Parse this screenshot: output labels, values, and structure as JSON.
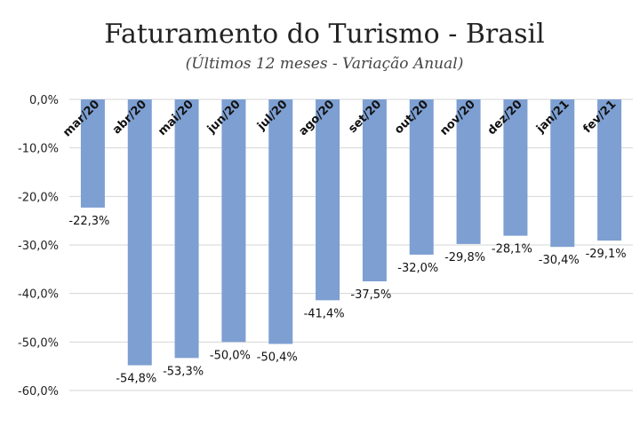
{
  "chart_data": {
    "type": "bar",
    "title": "Faturamento do Turismo - Brasil",
    "subtitle": "(Últimos 12 meses - Variação Anual)",
    "categories": [
      "mar/20",
      "abr/20",
      "mai/20",
      "jun/20",
      "jul/20",
      "ago/20",
      "set/20",
      "out/20",
      "nov/20",
      "dez/20",
      "jan/21",
      "fev/21"
    ],
    "values": [
      -22.3,
      -54.8,
      -53.3,
      -50.0,
      -50.4,
      -41.4,
      -37.5,
      -32.0,
      -29.8,
      -28.1,
      -30.4,
      -29.1
    ],
    "data_labels": [
      "-22,3%",
      "-54,8%",
      "-53,3%",
      "-50,0%",
      "-50,4%",
      "-41,4%",
      "-37,5%",
      "-32,0%",
      "-29,8%",
      "-28,1%",
      "-30,4%",
      "-29,1%"
    ],
    "ylim": [
      -60,
      0
    ],
    "yticks": [
      0,
      -10,
      -20,
      -30,
      -40,
      -50,
      -60
    ],
    "ytick_labels": [
      "0,0%",
      "-10,0%",
      "-20,0%",
      "-30,0%",
      "-40,0%",
      "-50,0%",
      "-60,0%"
    ],
    "xlabel": "",
    "ylabel": "",
    "grid": true,
    "legend": false,
    "bar_color": "#7d9fd2"
  }
}
